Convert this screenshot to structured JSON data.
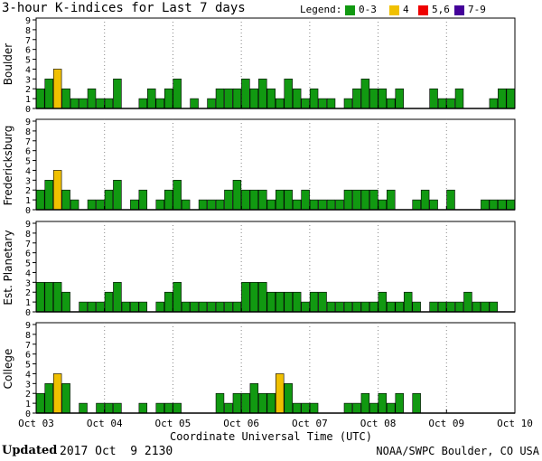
{
  "header": {
    "title": "3-hour K-indices for Last 7 days",
    "legend_label": "Legend:",
    "legend": [
      {
        "label": "0-3",
        "color": "#119911"
      },
      {
        "label": "4",
        "color": "#f0c000"
      },
      {
        "label": "5,6",
        "color": "#ee0000"
      },
      {
        "label": "7-9",
        "color": "#440099"
      }
    ]
  },
  "chart_data": {
    "type": "bar",
    "ylim": [
      0,
      9
    ],
    "yticks": [
      "0",
      "1",
      "2",
      "3",
      "4",
      "5",
      "6",
      "7",
      "8",
      "9"
    ],
    "x_ticks": [
      "Oct 03",
      "Oct 04",
      "Oct 05",
      "Oct 06",
      "Oct 07",
      "Oct 08",
      "Oct 09",
      "Oct 10"
    ],
    "xlabel": "Coordinate Universal Time (UTC)",
    "bins_per_day": 8,
    "days": 7,
    "panels": [
      {
        "name": "Boulder",
        "values": [
          2,
          3,
          4,
          2,
          1,
          1,
          2,
          1,
          1,
          3,
          0,
          0,
          1,
          2,
          1,
          2,
          3,
          0,
          1,
          0,
          1,
          2,
          2,
          2,
          3,
          2,
          3,
          2,
          1,
          3,
          2,
          1,
          2,
          1,
          1,
          0,
          1,
          2,
          3,
          2,
          2,
          1,
          2,
          0,
          0,
          0,
          2,
          1,
          1,
          2,
          0,
          0,
          0,
          1,
          2,
          2,
          0
        ]
      },
      {
        "name": "Fredericksburg",
        "values": [
          2,
          3,
          4,
          2,
          1,
          0,
          1,
          1,
          2,
          3,
          0,
          1,
          2,
          0,
          1,
          2,
          3,
          1,
          0,
          1,
          1,
          1,
          2,
          3,
          2,
          2,
          2,
          1,
          2,
          2,
          1,
          2,
          1,
          1,
          1,
          1,
          2,
          2,
          2,
          2,
          1,
          2,
          0,
          0,
          1,
          2,
          1,
          0,
          2,
          0,
          0,
          0,
          1,
          1,
          1,
          1,
          0
        ]
      },
      {
        "name": "Est. Planetary",
        "values": [
          3,
          3,
          3,
          2,
          0,
          1,
          1,
          1,
          2,
          3,
          1,
          1,
          1,
          0,
          1,
          2,
          3,
          1,
          1,
          1,
          1,
          1,
          1,
          1,
          3,
          3,
          3,
          2,
          2,
          2,
          2,
          1,
          2,
          2,
          1,
          1,
          1,
          1,
          1,
          1,
          2,
          1,
          1,
          2,
          1,
          0,
          1,
          1,
          1,
          1,
          2,
          1,
          1,
          1,
          0,
          0,
          0
        ]
      },
      {
        "name": "College",
        "values": [
          2,
          3,
          4,
          3,
          0,
          1,
          0,
          1,
          1,
          1,
          0,
          0,
          1,
          0,
          1,
          1,
          1,
          0,
          0,
          0,
          0,
          2,
          1,
          2,
          2,
          3,
          2,
          2,
          4,
          3,
          1,
          1,
          1,
          0,
          0,
          0,
          1,
          1,
          2,
          1,
          2,
          1,
          2,
          0,
          2,
          0,
          0,
          0,
          0,
          0,
          0,
          0,
          0,
          0,
          0,
          0,
          0
        ]
      }
    ]
  },
  "footer": {
    "updated_label": "Updated",
    "updated_value": "2017 Oct  9 2130",
    "credit": "NOAA/SWPC Boulder, CO USA"
  }
}
